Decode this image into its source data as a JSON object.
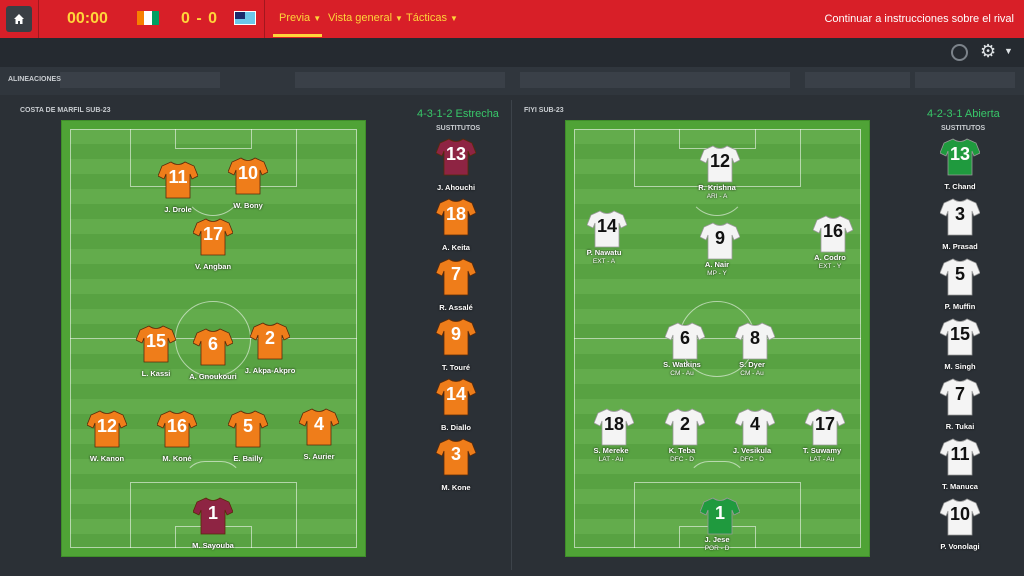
{
  "header": {
    "clock": "00:00",
    "score": "0 - 0",
    "menus": [
      "Previa",
      "Vista general",
      "Tácticas"
    ],
    "continue_label": "Continuar a instrucciones sobre el rival"
  },
  "section_title": "ALINEACIONES",
  "home": {
    "team_name": "COSTA DE MARFIL SUB-23",
    "formation": "4-3-1-2 Estrecha",
    "subs_label": "SUSTITUTOS",
    "players": [
      {
        "num": "11",
        "name": "J. Drole",
        "role": ""
      },
      {
        "num": "10",
        "name": "W. Bony",
        "role": ""
      },
      {
        "num": "17",
        "name": "V. Angban",
        "role": ""
      },
      {
        "num": "15",
        "name": "L. Kassi",
        "role": ""
      },
      {
        "num": "6",
        "name": "A. Gnoukouri",
        "role": ""
      },
      {
        "num": "2",
        "name": "J. Akpa-Akpro",
        "role": ""
      },
      {
        "num": "12",
        "name": "W. Kanon",
        "role": ""
      },
      {
        "num": "16",
        "name": "M. Koné",
        "role": ""
      },
      {
        "num": "5",
        "name": "E. Bailly",
        "role": ""
      },
      {
        "num": "4",
        "name": "S. Aurier",
        "role": ""
      },
      {
        "num": "1",
        "name": "M. Sayouba",
        "role": ""
      }
    ],
    "subs": [
      {
        "num": "13",
        "name": "J. Ahouchi"
      },
      {
        "num": "18",
        "name": "A. Keita"
      },
      {
        "num": "7",
        "name": "R. Assalé"
      },
      {
        "num": "9",
        "name": "T. Touré"
      },
      {
        "num": "14",
        "name": "B. Diallo"
      },
      {
        "num": "3",
        "name": "M. Kone"
      }
    ]
  },
  "away": {
    "team_name": "FIYI SUB-23",
    "formation": "4-2-3-1 Abierta",
    "subs_label": "SUSTITUTOS",
    "players": [
      {
        "num": "12",
        "name": "R. Krishna",
        "role": "ARI - A"
      },
      {
        "num": "14",
        "name": "P. Nawatu",
        "role": "EXT - A"
      },
      {
        "num": "9",
        "name": "A. Nair",
        "role": "MP - Y"
      },
      {
        "num": "16",
        "name": "A. Codro",
        "role": "EXT - Y"
      },
      {
        "num": "6",
        "name": "S. Watkins",
        "role": "CM - Au"
      },
      {
        "num": "8",
        "name": "S. Dyer",
        "role": "CM - Au"
      },
      {
        "num": "18",
        "name": "S. Mereke",
        "role": "LAT - Au"
      },
      {
        "num": "2",
        "name": "K. Teba",
        "role": "DFC - D"
      },
      {
        "num": "4",
        "name": "J. Vesikula",
        "role": "DFC - D"
      },
      {
        "num": "17",
        "name": "T. Suwamy",
        "role": "LAT - Au"
      },
      {
        "num": "1",
        "name": "J. Jese",
        "role": "POR - D"
      }
    ],
    "subs": [
      {
        "num": "13",
        "name": "T. Chand"
      },
      {
        "num": "3",
        "name": "M. Prasad"
      },
      {
        "num": "5",
        "name": "P. Muffin"
      },
      {
        "num": "15",
        "name": "M. Singh"
      },
      {
        "num": "7",
        "name": "R. Tukai"
      },
      {
        "num": "11",
        "name": "T. Manuca"
      },
      {
        "num": "10",
        "name": "P. Vonolagi"
      }
    ]
  },
  "colors": {
    "topbar": "#d81f28",
    "accent_yellow": "#ffd53a",
    "formation_green": "#38c769",
    "home_shirt": "#ef7d1a",
    "home_keeper": "#8e2443",
    "away_shirt": "#f4f4f4",
    "away_keeper": "#1f9a3e"
  }
}
